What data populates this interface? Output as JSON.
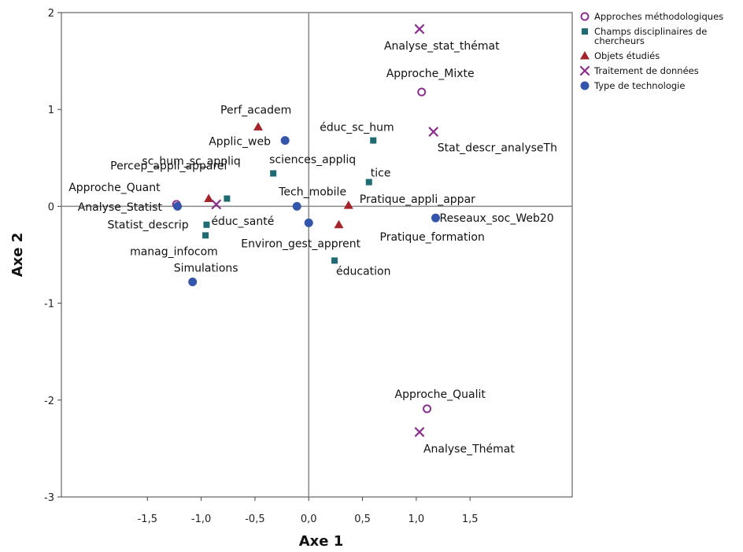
{
  "chart_data": {
    "type": "scatter",
    "xlabel": "Axe 1",
    "ylabel": "Axe 2",
    "xlim": [
      -2.3,
      2.45
    ],
    "ylim": [
      -3,
      2
    ],
    "xticks": [
      {
        "v": -1.5,
        "t": "-1,5"
      },
      {
        "v": -1.0,
        "t": "-1,0"
      },
      {
        "v": -0.5,
        "t": "-0,5"
      },
      {
        "v": 0.0,
        "t": "0,0"
      },
      {
        "v": 0.5,
        "t": "0,5"
      },
      {
        "v": 1.0,
        "t": "1,0"
      },
      {
        "v": 1.5,
        "t": "1,5"
      }
    ],
    "yticks": [
      {
        "v": 2,
        "t": "2"
      },
      {
        "v": 1,
        "t": "1"
      },
      {
        "v": 0,
        "t": "0"
      },
      {
        "v": -1,
        "t": "-1"
      },
      {
        "v": -2,
        "t": "-2"
      },
      {
        "v": -3,
        "t": "-3"
      }
    ],
    "reference_lines": {
      "x": 0,
      "y": 0
    },
    "legend_position": "top-right, outside plot",
    "series": [
      {
        "name": "Approches méthodologiques",
        "marker": "open-circle",
        "color": "#8b2f8f",
        "points": [
          {
            "label": "Approche_Mixte",
            "x": 1.05,
            "y": 1.18
          },
          {
            "label": "Approche_Quant",
            "x": -1.23,
            "y": 0.02
          },
          {
            "label": "Approche_Qualit",
            "x": 1.1,
            "y": -2.09
          }
        ]
      },
      {
        "name": "Champs disciplinaires de chercheurs",
        "marker": "square",
        "color": "#1f6b73",
        "points": [
          {
            "label": "éduc_sc_hum",
            "x": 0.6,
            "y": 0.68
          },
          {
            "label": "sciences_appliq",
            "x": -0.33,
            "y": 0.34
          },
          {
            "label": "tice",
            "x": 0.56,
            "y": 0.25
          },
          {
            "label": "sc_hum_sc_appliq",
            "x": -0.76,
            "y": 0.08
          },
          {
            "label": "éduc_santé",
            "x": -0.95,
            "y": -0.19
          },
          {
            "label": "manag_infocom",
            "x": -0.96,
            "y": -0.3
          },
          {
            "label": "éducation",
            "x": 0.24,
            "y": -0.56
          }
        ]
      },
      {
        "name": "Objets étudiés",
        "marker": "triangle",
        "color": "#a3242b",
        "points": [
          {
            "label": "Perf_academ",
            "x": -0.47,
            "y": 0.82
          },
          {
            "label": "Percep_appli_apparei",
            "x": -0.93,
            "y": 0.08
          },
          {
            "label": "Pratique_appli_appar",
            "x": 0.37,
            "y": 0.01
          },
          {
            "label": "Pratique_formation",
            "x": 0.28,
            "y": -0.19
          }
        ]
      },
      {
        "name": "Traitement de données",
        "marker": "x",
        "color": "#8b2f8f",
        "points": [
          {
            "label": "Analyse_stat_thémat",
            "x": 1.03,
            "y": 1.83
          },
          {
            "label": "Stat_descr_analyseTh",
            "x": 1.16,
            "y": 0.77
          },
          {
            "label": "Analyse_Statist",
            "x": -0.86,
            "y": 0.02
          },
          {
            "label": "Analyse_Thémat",
            "x": 1.03,
            "y": -2.33
          }
        ]
      },
      {
        "name": "Type de technologie",
        "marker": "filled-circle",
        "color": "#3355aa",
        "points": [
          {
            "label": "Applic_web",
            "x": -0.22,
            "y": 0.68
          },
          {
            "label": "Tech_mobile",
            "x": -0.11,
            "y": 0.0
          },
          {
            "label": "Environ_gest_apprent",
            "x": 0.0,
            "y": -0.17
          },
          {
            "label": "Reseaux_soc_Web20",
            "x": 1.18,
            "y": -0.12
          },
          {
            "label": "Simulations",
            "x": -1.08,
            "y": -0.78
          },
          {
            "label": "Statist_descrip",
            "x": -1.22,
            "y": 0.0
          }
        ]
      }
    ]
  }
}
